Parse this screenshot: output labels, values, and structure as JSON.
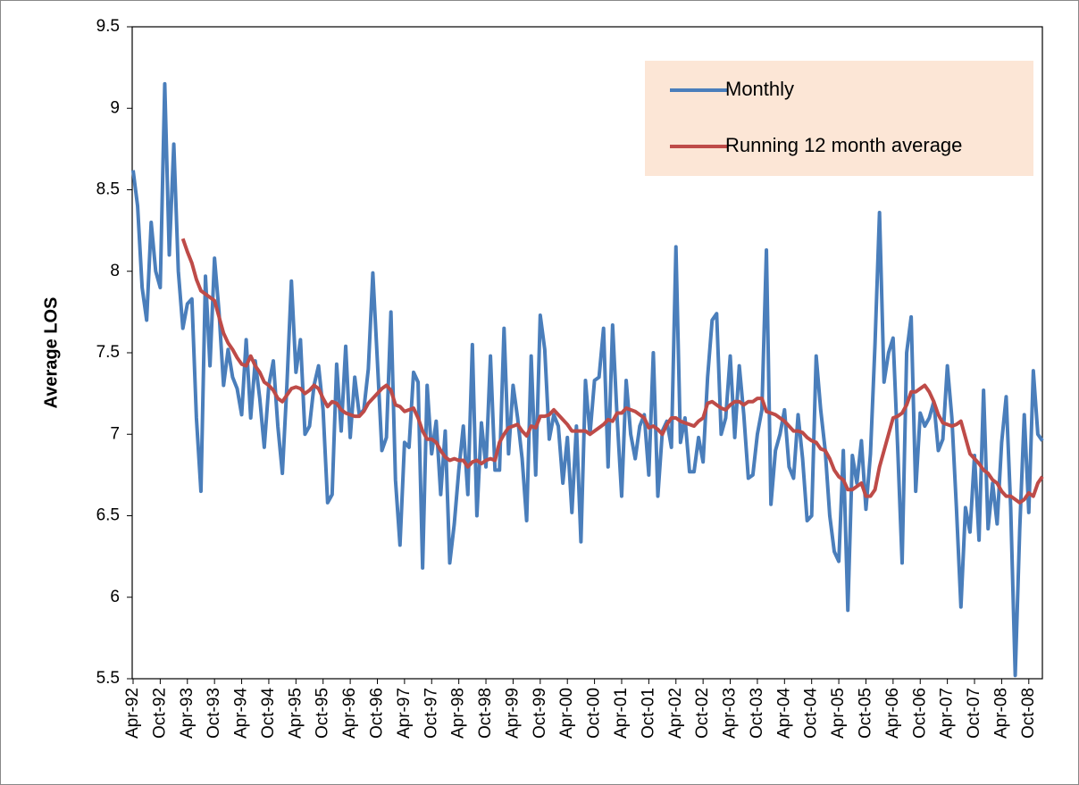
{
  "chart_data": {
    "type": "line",
    "y_label": "Average LOS",
    "categories": [
      "Apr-92",
      null,
      null,
      null,
      null,
      null,
      "Oct-92",
      null,
      null,
      null,
      null,
      null,
      "Apr-93",
      null,
      null,
      null,
      null,
      null,
      "Oct-93",
      null,
      null,
      null,
      null,
      null,
      "Apr-94",
      null,
      null,
      null,
      null,
      null,
      "Oct-94",
      null,
      null,
      null,
      null,
      null,
      "Apr-95",
      null,
      null,
      null,
      null,
      null,
      "Oct-95",
      null,
      null,
      null,
      null,
      null,
      "Apr-96",
      null,
      null,
      null,
      null,
      null,
      "Oct-96",
      null,
      null,
      null,
      null,
      null,
      "Apr-97",
      null,
      null,
      null,
      null,
      null,
      "Oct-97",
      null,
      null,
      null,
      null,
      null,
      "Apr-98",
      null,
      null,
      null,
      null,
      null,
      "Oct-98",
      null,
      null,
      null,
      null,
      null,
      "Apr-99",
      null,
      null,
      null,
      null,
      null,
      "Oct-99",
      null,
      null,
      null,
      null,
      null,
      "Apr-00",
      null,
      null,
      null,
      null,
      null,
      "Oct-00",
      null,
      null,
      null,
      null,
      null,
      "Apr-01",
      null,
      null,
      null,
      null,
      null,
      "Oct-01",
      null,
      null,
      null,
      null,
      null,
      "Apr-02",
      null,
      null,
      null,
      null,
      null,
      "Oct-02",
      null,
      null,
      null,
      null,
      null,
      "Apr-03",
      null,
      null,
      null,
      null,
      null,
      "Oct-03",
      null,
      null,
      null,
      null,
      null,
      "Apr-04",
      null,
      null,
      null,
      null,
      null,
      "Oct-04",
      null,
      null,
      null,
      null,
      null,
      "Apr-05",
      null,
      null,
      null,
      null,
      null,
      "Oct-05",
      null,
      null,
      null,
      null,
      null,
      "Apr-06",
      null,
      null,
      null,
      null,
      null,
      "Oct-06",
      null,
      null,
      null,
      null,
      null,
      "Apr-07",
      null,
      null,
      null,
      null,
      null,
      "Oct-07",
      null,
      null,
      null,
      null,
      null,
      "Apr-08",
      null,
      null,
      null,
      null,
      null,
      "Oct-08",
      null,
      null,
      null
    ],
    "series": [
      {
        "name": "Monthly",
        "color": "#4a7ebb",
        "values": [
          8.62,
          8.4,
          7.9,
          7.7,
          8.3,
          8.0,
          7.9,
          9.15,
          8.1,
          8.78,
          8.0,
          7.65,
          7.8,
          7.83,
          7.1,
          6.65,
          7.97,
          7.42,
          8.08,
          7.75,
          7.3,
          7.52,
          7.35,
          7.28,
          7.12,
          7.58,
          7.1,
          7.45,
          7.22,
          6.92,
          7.3,
          7.45,
          7.05,
          6.76,
          7.3,
          7.94,
          7.38,
          7.58,
          7.0,
          7.05,
          7.3,
          7.42,
          7.15,
          6.58,
          6.63,
          7.43,
          7.02,
          7.54,
          6.98,
          7.35,
          7.12,
          7.15,
          7.4,
          7.99,
          7.45,
          6.9,
          6.98,
          7.75,
          6.72,
          6.32,
          6.95,
          6.92,
          7.38,
          7.32,
          6.18,
          7.3,
          6.88,
          7.08,
          6.63,
          7.02,
          6.21,
          6.45,
          6.78,
          7.05,
          6.63,
          7.55,
          6.5,
          7.07,
          6.8,
          7.48,
          6.78,
          6.78,
          7.65,
          6.88,
          7.3,
          7.1,
          6.85,
          6.47,
          7.48,
          6.75,
          7.73,
          7.52,
          6.97,
          7.12,
          7.05,
          6.7,
          6.98,
          6.52,
          7.05,
          6.34,
          7.33,
          7.0,
          7.33,
          7.35,
          7.65,
          6.8,
          7.67,
          7.1,
          6.62,
          7.33,
          7.0,
          6.85,
          7.05,
          7.12,
          6.75,
          7.5,
          6.62,
          7.02,
          7.08,
          6.92,
          8.15,
          6.95,
          7.1,
          6.77,
          6.77,
          6.98,
          6.83,
          7.35,
          7.7,
          7.74,
          7.0,
          7.1,
          7.48,
          6.98,
          7.42,
          7.12,
          6.73,
          6.75,
          7.0,
          7.15,
          8.13,
          6.57,
          6.9,
          7.0,
          7.15,
          6.8,
          6.73,
          7.12,
          6.85,
          6.47,
          6.5,
          7.48,
          7.15,
          6.9,
          6.5,
          6.28,
          6.22,
          6.9,
          5.92,
          6.87,
          6.7,
          6.96,
          6.54,
          6.88,
          7.55,
          8.36,
          7.32,
          7.5,
          7.59,
          6.93,
          6.21,
          7.5,
          7.72,
          6.65,
          7.13,
          7.05,
          7.1,
          7.2,
          6.9,
          6.97,
          7.42,
          7.1,
          6.55,
          5.94,
          6.55,
          6.4,
          6.87,
          6.35,
          7.27,
          6.42,
          6.7,
          6.45,
          6.95,
          7.23,
          6.55,
          5.52,
          6.42,
          7.12,
          6.52,
          7.39,
          7.0,
          6.96
        ]
      },
      {
        "name": "Running 12 month average",
        "color": "#be4b48",
        "values": [
          null,
          null,
          null,
          null,
          null,
          null,
          null,
          null,
          null,
          null,
          null,
          8.2,
          8.12,
          8.05,
          7.95,
          7.88,
          7.86,
          7.84,
          7.82,
          7.72,
          7.62,
          7.56,
          7.52,
          7.47,
          7.43,
          7.42,
          7.48,
          7.42,
          7.38,
          7.32,
          7.3,
          7.27,
          7.22,
          7.2,
          7.24,
          7.28,
          7.29,
          7.28,
          7.25,
          7.27,
          7.3,
          7.28,
          7.22,
          7.17,
          7.2,
          7.19,
          7.15,
          7.13,
          7.12,
          7.11,
          7.11,
          7.14,
          7.19,
          7.22,
          7.25,
          7.28,
          7.3,
          7.27,
          7.18,
          7.17,
          7.14,
          7.15,
          7.16,
          7.1,
          7.02,
          6.97,
          6.97,
          6.95,
          6.9,
          6.86,
          6.84,
          6.85,
          6.84,
          6.84,
          6.8,
          6.83,
          6.84,
          6.82,
          6.84,
          6.85,
          6.84,
          6.95,
          7.0,
          7.04,
          7.05,
          7.06,
          7.02,
          6.99,
          7.05,
          7.04,
          7.11,
          7.11,
          7.12,
          7.15,
          7.12,
          7.09,
          7.06,
          7.02,
          7.02,
          7.02,
          7.02,
          7.0,
          7.02,
          7.04,
          7.06,
          7.09,
          7.08,
          7.13,
          7.13,
          7.16,
          7.15,
          7.14,
          7.12,
          7.1,
          7.04,
          7.05,
          7.03,
          7.0,
          7.06,
          7.1,
          7.1,
          7.08,
          7.07,
          7.06,
          7.05,
          7.08,
          7.1,
          7.19,
          7.2,
          7.18,
          7.16,
          7.15,
          7.18,
          7.2,
          7.2,
          7.18,
          7.2,
          7.2,
          7.22,
          7.22,
          7.14,
          7.13,
          7.12,
          7.1,
          7.08,
          7.05,
          7.02,
          7.02,
          7.01,
          6.98,
          6.96,
          6.95,
          6.91,
          6.9,
          6.85,
          6.78,
          6.74,
          6.72,
          6.66,
          6.66,
          6.68,
          6.7,
          6.62,
          6.62,
          6.66,
          6.8,
          6.9,
          7.0,
          7.1,
          7.11,
          7.13,
          7.18,
          7.26,
          7.26,
          7.28,
          7.3,
          7.26,
          7.2,
          7.12,
          7.07,
          7.06,
          7.05,
          7.06,
          7.08,
          6.98,
          6.88,
          6.85,
          6.82,
          6.78,
          6.76,
          6.72,
          6.7,
          6.65,
          6.62,
          6.62,
          6.6,
          6.58,
          6.6,
          6.64,
          6.62,
          6.7,
          6.74
        ]
      }
    ],
    "ylim": [
      5.5,
      9.5
    ],
    "yticks": [
      5.5,
      6,
      6.5,
      7,
      7.5,
      8,
      8.5,
      9,
      9.5
    ],
    "legend": "top-right",
    "legend_fill": "#fce6d6",
    "grid": false
  }
}
